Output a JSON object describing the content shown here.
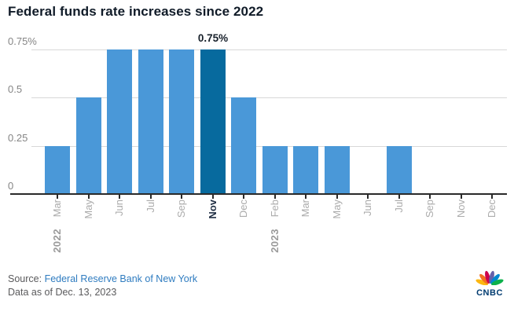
{
  "title": "Federal funds rate increases since 2022",
  "chart_data": {
    "type": "bar",
    "categories": [
      "Mar",
      "May",
      "Jun",
      "Jul",
      "Sep",
      "Nov",
      "Dec",
      "Feb",
      "Mar",
      "May",
      "Jun",
      "Jul",
      "Sep",
      "Nov",
      "Dec"
    ],
    "values": [
      0.25,
      0.5,
      0.75,
      0.75,
      0.75,
      0.75,
      0.5,
      0.25,
      0.25,
      0.25,
      0,
      0.25,
      0,
      0,
      0
    ],
    "highlight_index": 5,
    "annotation": {
      "text": "0.75%",
      "index": 5
    },
    "year_labels": [
      {
        "text": "2022",
        "index": 0
      },
      {
        "text": "2023",
        "index": 7
      }
    ],
    "y_ticks": [
      {
        "v": 0,
        "label": "0"
      },
      {
        "v": 0.25,
        "label": "0.25"
      },
      {
        "v": 0.5,
        "label": "0.5"
      },
      {
        "v": 0.75,
        "label": "0.75%"
      }
    ],
    "ylim": [
      0,
      0.75
    ],
    "grid": true,
    "legend": "none",
    "xlabel": "",
    "ylabel": "",
    "colors": {
      "bar": "#4A98D8",
      "bar_highlight": "#076A9E"
    }
  },
  "footer": {
    "source_prefix": "Source: ",
    "source_link": "Federal Reserve Bank of New York",
    "data_as_of": "Data as of Dec. 13, 2023"
  },
  "logo": {
    "wordmark": "CNBC",
    "peacock_colors": [
      "#FCB711",
      "#F37021",
      "#CC004C",
      "#6460AA",
      "#0089D0",
      "#0DB14B"
    ]
  }
}
